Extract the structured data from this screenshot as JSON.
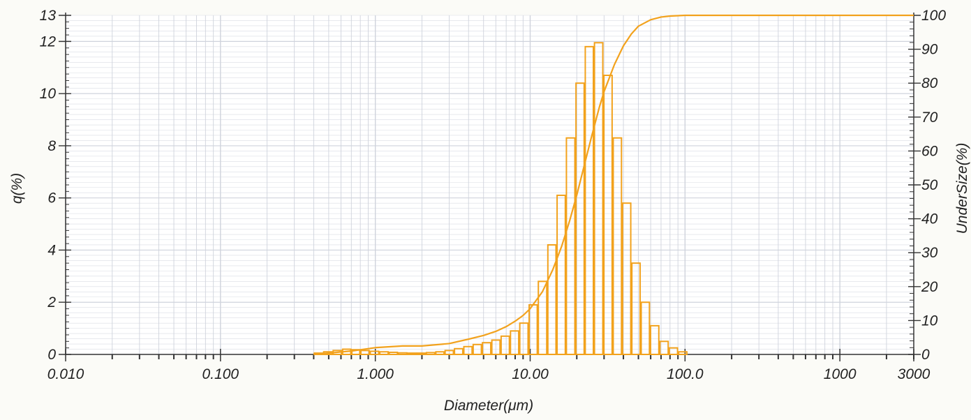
{
  "colors": {
    "background": "#fbfbf7",
    "grid": "#cfd3dc",
    "axis": "#333333",
    "histogram": "#f2a21d",
    "cumulative": "#f2a21d"
  },
  "chart_data": {
    "type": "bar",
    "subtype": "particle size distribution histogram with cumulative undersize curve",
    "xlabel": "Diameter(μm)",
    "ylabel_left": "q(%)",
    "ylabel_right": "UnderSize(%)",
    "x_scale": "log",
    "xlim": [
      0.01,
      3000
    ],
    "ylim_left": [
      0,
      13
    ],
    "ylim_right": [
      0,
      100
    ],
    "grid": true,
    "x_tick_labels": [
      {
        "value": 0.01,
        "label": "0.010"
      },
      {
        "value": 0.1,
        "label": "0.100"
      },
      {
        "value": 1,
        "label": "1.000"
      },
      {
        "value": 10,
        "label": "10.00"
      },
      {
        "value": 100,
        "label": "100.0"
      },
      {
        "value": 1000,
        "label": "1000"
      },
      {
        "value": 3000,
        "label": "3000"
      }
    ],
    "y_left_tick_labels": [
      "0",
      "2",
      "4",
      "6",
      "8",
      "10",
      "12",
      "13"
    ],
    "y_left_tick_values": [
      0,
      2,
      4,
      6,
      8,
      10,
      12,
      13
    ],
    "y_right_tick_labels": [
      "0",
      "10",
      "20",
      "30",
      "40",
      "50",
      "60",
      "70",
      "80",
      "90",
      "100"
    ],
    "y_right_tick_values": [
      0,
      10,
      20,
      30,
      40,
      50,
      60,
      70,
      80,
      90,
      100
    ],
    "series": [
      {
        "kind": "histogram",
        "axis": "left",
        "bins": [
          {
            "lower": 0.4,
            "upper": 0.46,
            "q": 0.05
          },
          {
            "lower": 0.46,
            "upper": 0.53,
            "q": 0.1
          },
          {
            "lower": 0.53,
            "upper": 0.61,
            "q": 0.15
          },
          {
            "lower": 0.61,
            "upper": 0.7,
            "q": 0.2
          },
          {
            "lower": 0.7,
            "upper": 0.8,
            "q": 0.18
          },
          {
            "lower": 0.8,
            "upper": 0.92,
            "q": 0.15
          },
          {
            "lower": 0.92,
            "upper": 1.06,
            "q": 0.12
          },
          {
            "lower": 1.06,
            "upper": 1.22,
            "q": 0.1
          },
          {
            "lower": 1.22,
            "upper": 1.4,
            "q": 0.08
          },
          {
            "lower": 1.4,
            "upper": 1.61,
            "q": 0.06
          },
          {
            "lower": 1.61,
            "upper": 1.85,
            "q": 0.05
          },
          {
            "lower": 1.85,
            "upper": 2.12,
            "q": 0.05
          },
          {
            "lower": 2.12,
            "upper": 2.44,
            "q": 0.07
          },
          {
            "lower": 2.44,
            "upper": 2.8,
            "q": 0.1
          },
          {
            "lower": 2.8,
            "upper": 3.22,
            "q": 0.15
          },
          {
            "lower": 3.22,
            "upper": 3.7,
            "q": 0.22
          },
          {
            "lower": 3.7,
            "upper": 4.25,
            "q": 0.3
          },
          {
            "lower": 4.25,
            "upper": 4.88,
            "q": 0.38
          },
          {
            "lower": 4.88,
            "upper": 5.61,
            "q": 0.45
          },
          {
            "lower": 5.61,
            "upper": 6.44,
            "q": 0.55
          },
          {
            "lower": 6.44,
            "upper": 7.4,
            "q": 0.7
          },
          {
            "lower": 7.4,
            "upper": 8.5,
            "q": 0.9
          },
          {
            "lower": 8.5,
            "upper": 9.77,
            "q": 1.2
          },
          {
            "lower": 9.77,
            "upper": 11.2,
            "q": 1.9
          },
          {
            "lower": 11.2,
            "upper": 12.9,
            "q": 2.8
          },
          {
            "lower": 12.9,
            "upper": 14.8,
            "q": 4.2
          },
          {
            "lower": 14.8,
            "upper": 17.0,
            "q": 6.1
          },
          {
            "lower": 17.0,
            "upper": 19.6,
            "q": 8.3
          },
          {
            "lower": 19.6,
            "upper": 22.5,
            "q": 10.4
          },
          {
            "lower": 22.5,
            "upper": 25.8,
            "q": 11.8
          },
          {
            "lower": 25.8,
            "upper": 29.7,
            "q": 11.95
          },
          {
            "lower": 29.7,
            "upper": 34.1,
            "q": 10.7
          },
          {
            "lower": 34.1,
            "upper": 39.2,
            "q": 8.3
          },
          {
            "lower": 39.2,
            "upper": 45.0,
            "q": 5.8
          },
          {
            "lower": 45.0,
            "upper": 51.7,
            "q": 3.5
          },
          {
            "lower": 51.7,
            "upper": 59.4,
            "q": 2.0
          },
          {
            "lower": 59.4,
            "upper": 68.3,
            "q": 1.1
          },
          {
            "lower": 68.3,
            "upper": 78.5,
            "q": 0.5
          },
          {
            "lower": 78.5,
            "upper": 90.2,
            "q": 0.25
          },
          {
            "lower": 90.2,
            "upper": 103.6,
            "q": 0.1
          }
        ]
      },
      {
        "kind": "cumulative-line",
        "axis": "right",
        "x": [
          0.4,
          0.7,
          1.0,
          1.5,
          2.0,
          3.0,
          4.0,
          5.0,
          6.0,
          7.0,
          8.0,
          9.0,
          10.0,
          12.0,
          14.0,
          16.0,
          18.0,
          20.0,
          22.0,
          25.0,
          28.0,
          30.0,
          35.0,
          40.0,
          45.0,
          50.0,
          60.0,
          70.0,
          80.0,
          100.0,
          3000.0
        ],
        "y": [
          0,
          1,
          2,
          2.5,
          2.5,
          3.2,
          4.5,
          5.6,
          6.8,
          8.2,
          9.8,
          11.5,
          13.5,
          18.5,
          25.0,
          32.0,
          39.5,
          47.0,
          54.5,
          64.5,
          73.0,
          77.5,
          85.5,
          91.0,
          94.5,
          96.8,
          98.7,
          99.5,
          99.8,
          100,
          100
        ]
      }
    ]
  }
}
